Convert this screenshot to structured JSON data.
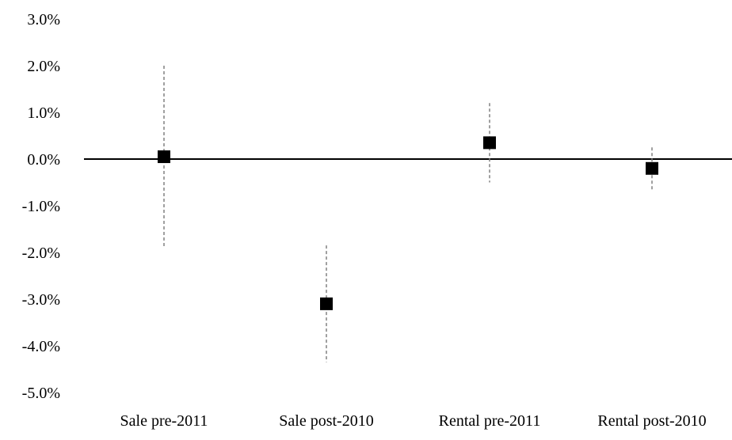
{
  "chart_data": {
    "type": "scatter",
    "title": "",
    "xlabel": "",
    "ylabel": "",
    "categories": [
      "Sale pre-2011",
      "Sale post-2010",
      "Rental pre-2011",
      "Rental post-2010"
    ],
    "series": [
      {
        "values": [
          0.05,
          -3.1,
          0.35,
          -0.2
        ],
        "error_low": [
          -1.9,
          -4.35,
          -0.5,
          -0.65
        ],
        "error_high": [
          2.0,
          -1.85,
          1.2,
          0.25
        ]
      }
    ],
    "ylim": [
      -5.0,
      3.0
    ],
    "yticks": [
      3.0,
      2.0,
      1.0,
      0.0,
      -1.0,
      -2.0,
      -3.0,
      -4.0,
      -5.0
    ],
    "ytick_labels": [
      "3.0%",
      "2.0%",
      "1.0%",
      "0.0%",
      "-1.0%",
      "-2.0%",
      "-3.0%",
      "-4.0%",
      "-5.0%"
    ],
    "grid": false,
    "legend": "none",
    "colors": {
      "marker": "#000000",
      "errorbar": "#808080",
      "zero_line": "#000000"
    }
  }
}
